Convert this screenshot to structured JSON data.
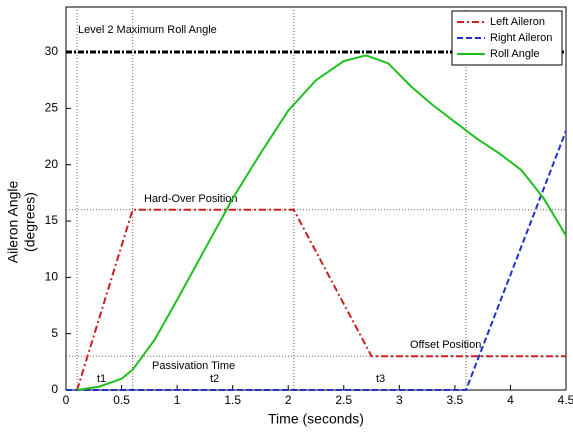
{
  "chart_data": {
    "type": "line",
    "x_label": "Time (seconds)",
    "y_label": [
      "Aileron Angle",
      "(degrees)"
    ],
    "xlim": [
      0,
      4.5
    ],
    "ylim": [
      0,
      34
    ],
    "xticks": [
      0,
      0.5,
      1,
      1.5,
      2,
      2.5,
      3,
      3.5,
      4,
      4.5
    ],
    "yticks": [
      0,
      5,
      10,
      15,
      20,
      25,
      30
    ],
    "legend": "upper right",
    "reference_hlines": [
      30,
      16,
      3
    ],
    "reference_vlines": [
      0.1,
      0.6,
      2.05,
      3.6
    ],
    "annotations": {
      "max_roll": "Level 2 Maximum Roll Angle",
      "hard_over": "Hard-Over Position",
      "offset": "Offset Position",
      "passivation": "Passivation Time",
      "t1": "t1",
      "t2": "t2",
      "t3": "t3"
    },
    "series": [
      {
        "name": "Left Aileron",
        "color": "#cc1f1f",
        "dash": "7 3 2 3",
        "x": [
          0.1,
          0.6,
          2.05,
          2.75,
          4.5
        ],
        "values": [
          0,
          16,
          16,
          3,
          3
        ]
      },
      {
        "name": "Right Aileron",
        "color": "#1f2fd0",
        "dash": "6 3",
        "x": [
          0,
          3.6,
          4.5
        ],
        "values": [
          0,
          0,
          23
        ]
      },
      {
        "name": "Roll Angle",
        "color": "#1fbf1f",
        "dash": "none",
        "x": [
          0.1,
          0.3,
          0.5,
          0.6,
          0.8,
          1.0,
          1.25,
          1.5,
          1.75,
          2.0,
          2.25,
          2.5,
          2.7,
          2.9,
          3.1,
          3.3,
          3.5,
          3.7,
          3.9,
          4.1,
          4.3,
          4.5
        ],
        "values": [
          0,
          0.3,
          1,
          1.8,
          4.5,
          8,
          12.5,
          17,
          21,
          24.8,
          27.5,
          29.2,
          29.7,
          29,
          27,
          25.3,
          23.8,
          22.3,
          21,
          19.5,
          17,
          13.7
        ]
      }
    ]
  }
}
